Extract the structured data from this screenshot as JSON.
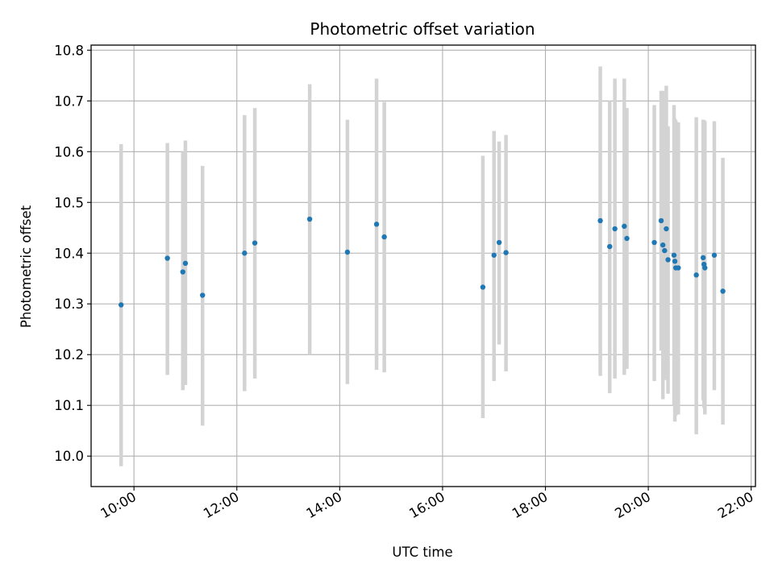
{
  "chart_data": {
    "type": "scatter",
    "title": "Photometric offset variation",
    "xlabel": "UTC time",
    "ylabel": "Photometric offset",
    "x_unit": "hours UTC",
    "xlim": [
      "09:10",
      "22:05"
    ],
    "ylim": [
      9.94,
      10.81
    ],
    "x_ticks": [
      "10:00",
      "12:00",
      "14:00",
      "16:00",
      "18:00",
      "20:00",
      "22:00"
    ],
    "y_ticks": [
      "10.0",
      "10.1",
      "10.2",
      "10.3",
      "10.4",
      "10.5",
      "10.6",
      "10.7",
      "10.8"
    ],
    "grid": true,
    "legend": "none",
    "colors": {
      "marker": "#1f77b4",
      "errorbar": "#d3d3d3",
      "grid": "#b0b0b0"
    },
    "series": [
      {
        "points": [
          {
            "x": "09:45",
            "y": 10.298,
            "lo": 9.98,
            "hi": 10.615
          },
          {
            "x": "10:39",
            "y": 10.39,
            "lo": 10.16,
            "hi": 10.617
          },
          {
            "x": "10:57",
            "y": 10.363,
            "lo": 10.13,
            "hi": 10.6
          },
          {
            "x": "11:00",
            "y": 10.38,
            "lo": 10.14,
            "hi": 10.622
          },
          {
            "x": "11:20",
            "y": 10.317,
            "lo": 10.06,
            "hi": 10.572
          },
          {
            "x": "12:09",
            "y": 10.4,
            "lo": 10.128,
            "hi": 10.672
          },
          {
            "x": "12:21",
            "y": 10.42,
            "lo": 10.153,
            "hi": 10.686
          },
          {
            "x": "13:25",
            "y": 10.467,
            "lo": 10.2,
            "hi": 10.733
          },
          {
            "x": "14:09",
            "y": 10.402,
            "lo": 10.142,
            "hi": 10.663
          },
          {
            "x": "14:43",
            "y": 10.457,
            "lo": 10.17,
            "hi": 10.744
          },
          {
            "x": "14:52",
            "y": 10.432,
            "lo": 10.165,
            "hi": 10.698
          },
          {
            "x": "16:47",
            "y": 10.333,
            "lo": 10.075,
            "hi": 10.592
          },
          {
            "x": "17:00",
            "y": 10.396,
            "lo": 10.148,
            "hi": 10.641
          },
          {
            "x": "17:06",
            "y": 10.421,
            "lo": 10.22,
            "hi": 10.62
          },
          {
            "x": "17:14",
            "y": 10.401,
            "lo": 10.167,
            "hi": 10.633
          },
          {
            "x": "19:04",
            "y": 10.464,
            "lo": 10.158,
            "hi": 10.768
          },
          {
            "x": "19:15",
            "y": 10.413,
            "lo": 10.124,
            "hi": 10.7
          },
          {
            "x": "19:21",
            "y": 10.448,
            "lo": 10.153,
            "hi": 10.744
          },
          {
            "x": "19:32",
            "y": 10.453,
            "lo": 10.16,
            "hi": 10.744
          },
          {
            "x": "19:35",
            "y": 10.429,
            "lo": 10.172,
            "hi": 10.686
          },
          {
            "x": "20:07",
            "y": 10.421,
            "lo": 10.148,
            "hi": 10.692
          },
          {
            "x": "20:15",
            "y": 10.464,
            "lo": 10.208,
            "hi": 10.72
          },
          {
            "x": "20:17",
            "y": 10.416,
            "lo": 10.112,
            "hi": 10.72
          },
          {
            "x": "20:19",
            "y": 10.405,
            "lo": 10.15,
            "hi": 10.665
          },
          {
            "x": "20:21",
            "y": 10.448,
            "lo": 10.165,
            "hi": 10.73
          },
          {
            "x": "20:23",
            "y": 10.387,
            "lo": 10.123,
            "hi": 10.65
          },
          {
            "x": "20:30",
            "y": 10.396,
            "lo": 10.1,
            "hi": 10.692
          },
          {
            "x": "20:31",
            "y": 10.384,
            "lo": 10.068,
            "hi": 10.665
          },
          {
            "x": "20:32",
            "y": 10.371,
            "lo": 10.08,
            "hi": 10.662
          },
          {
            "x": "20:35",
            "y": 10.371,
            "lo": 10.082,
            "hi": 10.658
          },
          {
            "x": "20:56",
            "y": 10.357,
            "lo": 10.043,
            "hi": 10.668
          },
          {
            "x": "21:04",
            "y": 10.391,
            "lo": 10.11,
            "hi": 10.663
          },
          {
            "x": "21:05",
            "y": 10.378,
            "lo": 10.095,
            "hi": 10.662
          },
          {
            "x": "21:06",
            "y": 10.371,
            "lo": 10.082,
            "hi": 10.66
          },
          {
            "x": "21:17",
            "y": 10.396,
            "lo": 10.13,
            "hi": 10.66
          },
          {
            "x": "21:27",
            "y": 10.325,
            "lo": 10.062,
            "hi": 10.588
          }
        ]
      }
    ]
  }
}
